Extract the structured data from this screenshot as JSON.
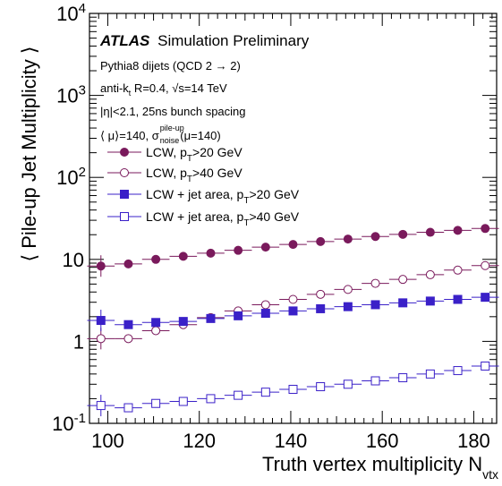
{
  "chart_data": {
    "type": "scatter",
    "title": "",
    "xlabel": "Truth vertex multiplicity N",
    "xlabel_sub": "vtx",
    "ylabel": "⟨ Pile-up Jet Multiplicity ⟩",
    "xlim": [
      96,
      185
    ],
    "ylim": [
      0.1,
      10000
    ],
    "yscale": "log",
    "x_ticks": [
      100,
      120,
      140,
      160,
      180
    ],
    "x_tick_labels": [
      "100",
      "120",
      "140",
      "160",
      "180"
    ],
    "y_ticks": [
      0.1,
      1,
      10,
      100,
      1000,
      10000
    ],
    "y_tick_labels": {
      "t0": {
        "base": "10",
        "exp": "-1"
      },
      "t1": {
        "base": "1",
        "exp": ""
      },
      "t2": {
        "base": "10",
        "exp": ""
      },
      "t3": {
        "base": "10",
        "exp": "2"
      },
      "t4": {
        "base": "10",
        "exp": "3"
      },
      "t5": {
        "base": "10",
        "exp": "4"
      }
    },
    "x": [
      98.5,
      104.5,
      110.5,
      116.5,
      122.5,
      128.5,
      134.5,
      140.5,
      146.5,
      152.5,
      158.5,
      164.5,
      170.5,
      176.5,
      182.5
    ],
    "series": [
      {
        "name": "LCW, p_T>20 GeV",
        "color": "#7a1a5c",
        "marker": "circle",
        "filled": true,
        "values": [
          8.3,
          8.8,
          10.0,
          10.9,
          11.9,
          12.9,
          14.1,
          15.2,
          16.5,
          17.7,
          19.0,
          20.2,
          21.4,
          22.6,
          23.8
        ]
      },
      {
        "name": "LCW, p_T>40 GeV",
        "color": "#7a1a5c",
        "marker": "circle",
        "filled": false,
        "values": [
          1.08,
          1.08,
          1.35,
          1.6,
          1.95,
          2.35,
          2.8,
          3.25,
          3.75,
          4.3,
          5.1,
          5.7,
          6.5,
          7.4,
          8.4
        ]
      },
      {
        "name": "LCW + jet area, p_T>20 GeV",
        "color": "#3a20c8",
        "marker": "square",
        "filled": true,
        "values": [
          1.8,
          1.6,
          1.7,
          1.75,
          1.9,
          2.05,
          2.2,
          2.35,
          2.5,
          2.65,
          2.8,
          2.95,
          3.1,
          3.25,
          3.45
        ]
      },
      {
        "name": "LCW + jet area, p_T>40 GeV",
        "color": "#3a20c8",
        "marker": "square",
        "filled": false,
        "values": [
          0.165,
          0.155,
          0.175,
          0.185,
          0.2,
          0.22,
          0.24,
          0.26,
          0.28,
          0.3,
          0.33,
          0.36,
          0.4,
          0.44,
          0.5
        ]
      }
    ],
    "legend": {
      "placement": "top-left",
      "entries": [
        {
          "main": "LCW, p",
          "sub": "T",
          "rest": ">20 GeV"
        },
        {
          "main": "LCW, p",
          "sub": "T",
          "rest": ">40 GeV"
        },
        {
          "main": "LCW + jet area, p",
          "sub": "T",
          "rest": ">20 GeV"
        },
        {
          "main": "LCW + jet area, p",
          "sub": "T",
          "rest": ">40 GeV"
        }
      ]
    },
    "annotations": {
      "atlas": "ATLAS",
      "atlas_rest": "Simulation Preliminary",
      "line1": "Pythia8 dijets (QCD 2 → 2)",
      "line2_a": "anti-k",
      "line2_sub": "t",
      "line2_b": " R=0.4, ",
      "line2_sqrt": "√",
      "line2_c": "s=14 TeV",
      "line3": "|η|<2.1, 25ns bunch spacing",
      "line4_a": "⟨ μ⟩=140, σ",
      "line4_sup": "pile-up",
      "line4_sub": "noise",
      "line4_b": "(μ=140)"
    }
  }
}
